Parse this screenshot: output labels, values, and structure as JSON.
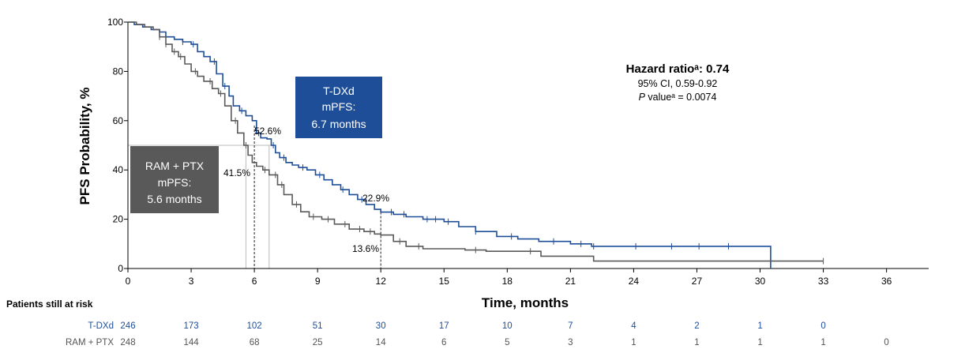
{
  "chart_data": {
    "type": "line",
    "subtype": "kaplan-meier",
    "title": "",
    "xlabel": "Time, months",
    "ylabel": "PFS Probability, %",
    "xlim": [
      0,
      38
    ],
    "ylim": [
      0,
      100
    ],
    "x_ticks": [
      0,
      3,
      6,
      9,
      12,
      15,
      18,
      21,
      24,
      27,
      30,
      33,
      36
    ],
    "y_ticks": [
      0,
      20,
      40,
      60,
      80,
      100
    ],
    "series": [
      {
        "name": "T-DXd",
        "color": "#1f4e99",
        "steps": [
          [
            0,
            100
          ],
          [
            0.3,
            99
          ],
          [
            0.7,
            98
          ],
          [
            1.1,
            97
          ],
          [
            1.5,
            96
          ],
          [
            1.8,
            94
          ],
          [
            2.2,
            93
          ],
          [
            2.6,
            92
          ],
          [
            3,
            91
          ],
          [
            3.3,
            88
          ],
          [
            3.6,
            86
          ],
          [
            3.9,
            84
          ],
          [
            4.2,
            79
          ],
          [
            4.5,
            74
          ],
          [
            4.8,
            70
          ],
          [
            5,
            66
          ],
          [
            5.3,
            64
          ],
          [
            5.6,
            62
          ],
          [
            5.9,
            60
          ],
          [
            6.1,
            55
          ],
          [
            6.3,
            53
          ],
          [
            6.6,
            52.6
          ],
          [
            6.8,
            50
          ],
          [
            7,
            47
          ],
          [
            7.2,
            45
          ],
          [
            7.5,
            43
          ],
          [
            7.8,
            42
          ],
          [
            8.1,
            41
          ],
          [
            8.5,
            40
          ],
          [
            8.9,
            38
          ],
          [
            9.3,
            36
          ],
          [
            9.7,
            34
          ],
          [
            10.1,
            32
          ],
          [
            10.5,
            30
          ],
          [
            10.9,
            28
          ],
          [
            11.3,
            26
          ],
          [
            11.7,
            24
          ],
          [
            12,
            22.9
          ],
          [
            12.6,
            22
          ],
          [
            13.2,
            21
          ],
          [
            14,
            20
          ],
          [
            15,
            19
          ],
          [
            15.7,
            17
          ],
          [
            16.5,
            15
          ],
          [
            17.5,
            13
          ],
          [
            18.5,
            12
          ],
          [
            19.5,
            11
          ],
          [
            21,
            10
          ],
          [
            22,
            9
          ],
          [
            24,
            9
          ],
          [
            26,
            9
          ],
          [
            28,
            9
          ],
          [
            30,
            9
          ],
          [
            30.5,
            0
          ]
        ],
        "censor_x": [
          2.6,
          3.1,
          4.1,
          4.6,
          5.4,
          6.2,
          6.9,
          7.4,
          8.3,
          9.1,
          10.2,
          11.1,
          12.5,
          13.1,
          14.2,
          14.6,
          15.2,
          16.5,
          18.2,
          20.2,
          21.5,
          22.1,
          24.1,
          25.8,
          27.1,
          28.5
        ]
      },
      {
        "name": "RAM + PTX",
        "color": "#5a5a5a",
        "steps": [
          [
            0,
            100
          ],
          [
            0.4,
            99
          ],
          [
            0.8,
            98
          ],
          [
            1.2,
            97
          ],
          [
            1.5,
            94
          ],
          [
            1.8,
            91
          ],
          [
            2.1,
            88
          ],
          [
            2.4,
            86
          ],
          [
            2.7,
            83
          ],
          [
            3,
            80
          ],
          [
            3.3,
            78
          ],
          [
            3.6,
            76
          ],
          [
            4,
            73
          ],
          [
            4.3,
            71
          ],
          [
            4.6,
            66
          ],
          [
            4.9,
            60
          ],
          [
            5.2,
            55
          ],
          [
            5.5,
            50
          ],
          [
            5.7,
            46
          ],
          [
            5.9,
            43
          ],
          [
            6.1,
            41.5
          ],
          [
            6.4,
            40
          ],
          [
            6.7,
            38
          ],
          [
            7.1,
            34
          ],
          [
            7.4,
            30
          ],
          [
            7.8,
            26
          ],
          [
            8.2,
            23
          ],
          [
            8.6,
            21
          ],
          [
            9.2,
            20
          ],
          [
            9.8,
            18
          ],
          [
            10.5,
            16
          ],
          [
            11.2,
            15
          ],
          [
            11.7,
            14
          ],
          [
            12,
            13.6
          ],
          [
            12.6,
            11
          ],
          [
            13.2,
            9
          ],
          [
            14,
            8
          ],
          [
            15,
            8
          ],
          [
            16,
            7.5
          ],
          [
            17,
            7
          ],
          [
            19.5,
            7
          ],
          [
            19.6,
            5
          ],
          [
            22,
            5
          ],
          [
            22.1,
            3
          ],
          [
            33,
            3
          ]
        ],
        "censor_x": [
          1.5,
          1.8,
          2.2,
          2.5,
          3.2,
          3.9,
          4.4,
          5.1,
          5.6,
          6.5,
          7,
          7.3,
          8,
          8.8,
          9.5,
          10.3,
          11,
          11.5,
          12.9,
          13.8,
          16.5,
          19.1,
          33
        ]
      }
    ],
    "annotations": {
      "t_dxd_6mo": "52.6%",
      "ram_6mo": "41.5%",
      "t_dxd_12mo": "22.9%",
      "ram_12mo": "13.6%",
      "t_dxd_box": [
        "T-DXd",
        "mPFS:",
        "6.7 months"
      ],
      "ram_box": [
        "RAM + PTX",
        "mPFS:",
        "5.6 months"
      ],
      "hr_title": "Hazard ratioᵃ: 0.74",
      "hr_ci": "95% CI, 0.59-0.92",
      "hr_p_italic": "P",
      "hr_p_rest": " valueᵃ = 0.0074"
    },
    "at_risk": {
      "header": "Patients still at risk",
      "rows": [
        {
          "name": "T-DXd",
          "color": "#1f4e99",
          "values": [
            "246",
            "173",
            "102",
            "51",
            "30",
            "17",
            "10",
            "7",
            "4",
            "2",
            "1",
            "0"
          ]
        },
        {
          "name": "RAM + PTX",
          "color": "#555555",
          "values": [
            "248",
            "144",
            "68",
            "25",
            "14",
            "6",
            "5",
            "3",
            "1",
            "1",
            "1",
            "1",
            "0"
          ]
        }
      ]
    }
  }
}
